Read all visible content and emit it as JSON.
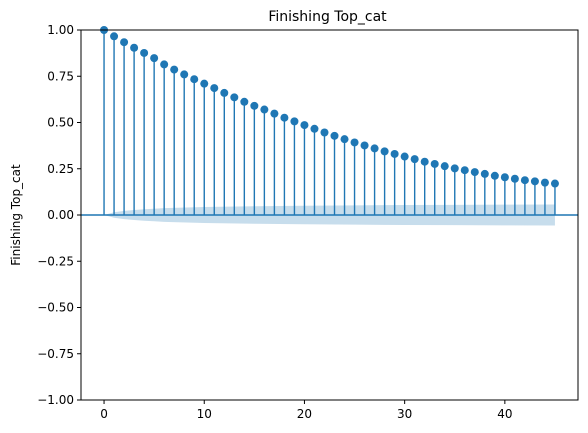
{
  "chart_data": {
    "type": "stem",
    "title": "Finishing Top_cat",
    "ylabel": "Finishing Top_cat",
    "xlabel": "",
    "xlim": [
      -2.3,
      47.3
    ],
    "ylim": [
      -1.0,
      1.0
    ],
    "xticks": [
      0,
      10,
      20,
      30,
      40
    ],
    "xtick_labels": [
      "0",
      "10",
      "20",
      "30",
      "40"
    ],
    "yticks": [
      -1.0,
      -0.75,
      -0.5,
      -0.25,
      0.0,
      0.25,
      0.5,
      0.75,
      1.0
    ],
    "ytick_labels": [
      "−1.00",
      "−0.75",
      "−0.50",
      "−0.25",
      "0.00",
      "0.25",
      "0.50",
      "0.75",
      "1.00"
    ],
    "grid": false,
    "legend": "none",
    "colors": {
      "stem": "#1f77b4",
      "band": "#1f77b4"
    },
    "series": [
      {
        "x": [
          0,
          1,
          2,
          3,
          4,
          5,
          6,
          7,
          8,
          9,
          10,
          11,
          12,
          13,
          14,
          15,
          16,
          17,
          18,
          19,
          20,
          21,
          22,
          23,
          24,
          25,
          26,
          27,
          28,
          29,
          30,
          31,
          32,
          33,
          34,
          35,
          36,
          37,
          38,
          39,
          40,
          41,
          42,
          43,
          44,
          45
        ],
        "values": [
          1.0,
          0.966,
          0.934,
          0.904,
          0.876,
          0.848,
          0.814,
          0.786,
          0.76,
          0.734,
          0.71,
          0.686,
          0.66,
          0.636,
          0.612,
          0.59,
          0.57,
          0.548,
          0.526,
          0.506,
          0.486,
          0.466,
          0.446,
          0.428,
          0.41,
          0.392,
          0.376,
          0.36,
          0.344,
          0.33,
          0.316,
          0.302,
          0.288,
          0.276,
          0.264,
          0.252,
          0.242,
          0.232,
          0.222,
          0.212,
          0.204,
          0.196,
          0.188,
          0.182,
          0.175,
          0.17
        ]
      }
    ],
    "confidence_band": {
      "x": [
        0,
        1,
        2,
        3,
        4,
        5,
        6,
        10,
        15,
        20,
        25,
        30,
        35,
        40,
        45
      ],
      "lower": [
        0.0,
        -0.015,
        -0.022,
        -0.027,
        -0.031,
        -0.034,
        -0.037,
        -0.043,
        -0.047,
        -0.05,
        -0.052,
        -0.054,
        -0.055,
        -0.056,
        -0.057
      ],
      "upper": [
        0.0,
        0.015,
        0.022,
        0.027,
        0.031,
        0.034,
        0.037,
        0.043,
        0.047,
        0.05,
        0.052,
        0.054,
        0.055,
        0.056,
        0.057
      ]
    }
  }
}
